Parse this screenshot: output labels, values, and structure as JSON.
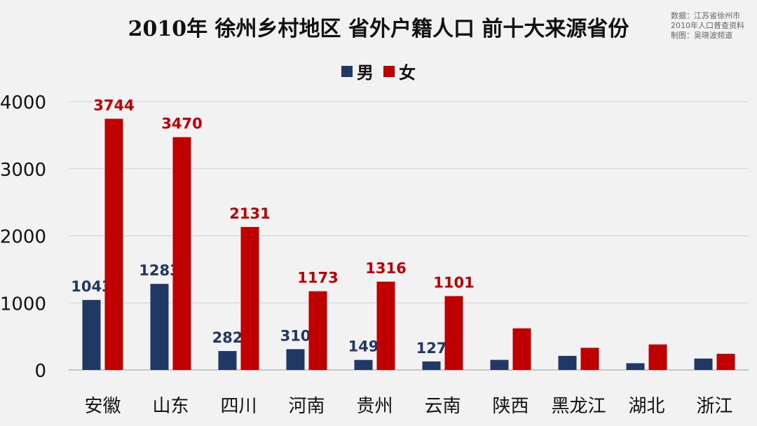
{
  "title": "2010年 徐州乡村地区 省外户籍人口 前十大来源省份",
  "source": {
    "line1": "数据：江苏省徐州市",
    "line2": "2010年人口普查资料",
    "line3": "制图：吴晓波频道"
  },
  "colors": {
    "male": "#1f3864",
    "female": "#c00000",
    "grid": "#d0d0d0",
    "text": "#111111"
  },
  "chart_data": {
    "type": "bar",
    "title": "2010年 徐州乡村地区 省外户籍人口 前十大来源省份",
    "categories": [
      "安徽",
      "山东",
      "四川",
      "河南",
      "贵州",
      "云南",
      "陕西",
      "黑龙江",
      "湖北",
      "浙江"
    ],
    "series": [
      {
        "name": "男",
        "values": [
          1043,
          1283,
          282,
          310,
          149,
          127,
          150,
          210,
          100,
          170
        ]
      },
      {
        "name": "女",
        "values": [
          3744,
          3470,
          2131,
          1173,
          1316,
          1101,
          620,
          330,
          380,
          240
        ]
      }
    ],
    "labels": {
      "男": [
        "1043",
        "1283",
        "282",
        "310",
        "149",
        "127",
        "",
        "",
        "",
        ""
      ],
      "女": [
        "3744",
        "3470",
        "2131",
        "1173",
        "1316",
        "1101",
        "",
        "",
        "",
        ""
      ]
    },
    "ylim": [
      0,
      4000
    ],
    "yticks": [
      0,
      1000,
      2000,
      3000,
      4000
    ],
    "grid": true,
    "legend_position": "top-center"
  }
}
